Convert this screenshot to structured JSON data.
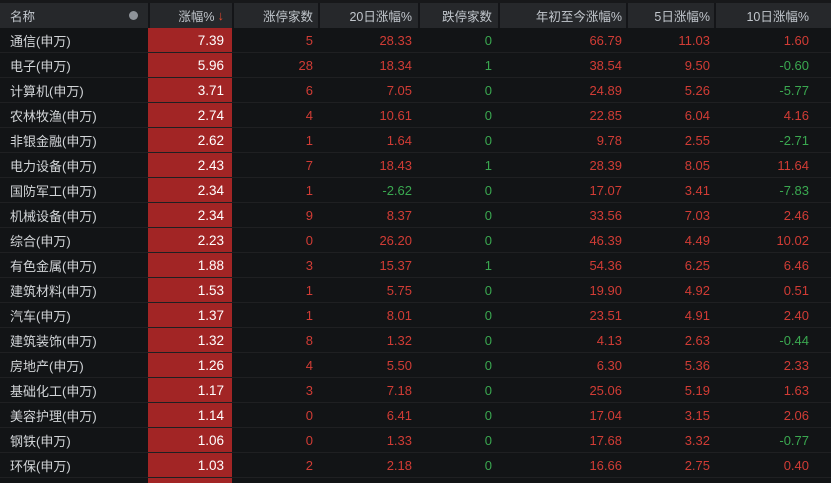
{
  "table": {
    "sort_indicator": "↓",
    "columns": [
      {
        "key": "name",
        "label": "名称",
        "rule": "plain"
      },
      {
        "key": "change",
        "label": "涨幅%",
        "rule": "bar",
        "sorted": "desc"
      },
      {
        "key": "limit_up",
        "label": "涨停家数",
        "rule": "always-red"
      },
      {
        "key": "chg20",
        "label": "20日涨幅%",
        "rule": "sign"
      },
      {
        "key": "limit_down",
        "label": "跌停家数",
        "rule": "always-green"
      },
      {
        "key": "ytd",
        "label": "年初至今涨幅%",
        "rule": "sign"
      },
      {
        "key": "chg5",
        "label": "5日涨幅%",
        "rule": "sign"
      },
      {
        "key": "chg10",
        "label": "10日涨幅%",
        "rule": "sign"
      }
    ],
    "rows": [
      {
        "name": "通信(申万)",
        "change": "7.39",
        "limit_up": "5",
        "chg20": "28.33",
        "limit_down": "0",
        "ytd": "66.79",
        "chg5": "11.03",
        "chg10": "1.60"
      },
      {
        "name": "电子(申万)",
        "change": "5.96",
        "limit_up": "28",
        "chg20": "18.34",
        "limit_down": "1",
        "ytd": "38.54",
        "chg5": "9.50",
        "chg10": "-0.60"
      },
      {
        "name": "计算机(申万)",
        "change": "3.71",
        "limit_up": "6",
        "chg20": "7.05",
        "limit_down": "0",
        "ytd": "24.89",
        "chg5": "5.26",
        "chg10": "-5.77"
      },
      {
        "name": "农林牧渔(申万)",
        "change": "2.74",
        "limit_up": "4",
        "chg20": "10.61",
        "limit_down": "0",
        "ytd": "22.85",
        "chg5": "6.04",
        "chg10": "4.16"
      },
      {
        "name": "非银金融(申万)",
        "change": "2.62",
        "limit_up": "1",
        "chg20": "1.64",
        "limit_down": "0",
        "ytd": "9.78",
        "chg5": "2.55",
        "chg10": "-2.71"
      },
      {
        "name": "电力设备(申万)",
        "change": "2.43",
        "limit_up": "7",
        "chg20": "18.43",
        "limit_down": "1",
        "ytd": "28.39",
        "chg5": "8.05",
        "chg10": "11.64"
      },
      {
        "name": "国防军工(申万)",
        "change": "2.34",
        "limit_up": "1",
        "chg20": "-2.62",
        "limit_down": "0",
        "ytd": "17.07",
        "chg5": "3.41",
        "chg10": "-7.83"
      },
      {
        "name": "机械设备(申万)",
        "change": "2.34",
        "limit_up": "9",
        "chg20": "8.37",
        "limit_down": "0",
        "ytd": "33.56",
        "chg5": "7.03",
        "chg10": "2.46"
      },
      {
        "name": "综合(申万)",
        "change": "2.23",
        "limit_up": "0",
        "chg20": "26.20",
        "limit_down": "0",
        "ytd": "46.39",
        "chg5": "4.49",
        "chg10": "10.02"
      },
      {
        "name": "有色金属(申万)",
        "change": "1.88",
        "limit_up": "3",
        "chg20": "15.37",
        "limit_down": "1",
        "ytd": "54.36",
        "chg5": "6.25",
        "chg10": "6.46"
      },
      {
        "name": "建筑材料(申万)",
        "change": "1.53",
        "limit_up": "1",
        "chg20": "5.75",
        "limit_down": "0",
        "ytd": "19.90",
        "chg5": "4.92",
        "chg10": "0.51"
      },
      {
        "name": "汽车(申万)",
        "change": "1.37",
        "limit_up": "1",
        "chg20": "8.01",
        "limit_down": "0",
        "ytd": "23.51",
        "chg5": "4.91",
        "chg10": "2.40"
      },
      {
        "name": "建筑装饰(申万)",
        "change": "1.32",
        "limit_up": "8",
        "chg20": "1.32",
        "limit_down": "0",
        "ytd": "4.13",
        "chg5": "2.63",
        "chg10": "-0.44"
      },
      {
        "name": "房地产(申万)",
        "change": "1.26",
        "limit_up": "4",
        "chg20": "5.50",
        "limit_down": "0",
        "ytd": "6.30",
        "chg5": "5.36",
        "chg10": "2.33"
      },
      {
        "name": "基础化工(申万)",
        "change": "1.17",
        "limit_up": "3",
        "chg20": "7.18",
        "limit_down": "0",
        "ytd": "25.06",
        "chg5": "5.19",
        "chg10": "1.63"
      },
      {
        "name": "美容护理(申万)",
        "change": "1.14",
        "limit_up": "0",
        "chg20": "6.41",
        "limit_down": "0",
        "ytd": "17.04",
        "chg5": "3.15",
        "chg10": "2.06"
      },
      {
        "name": "钢铁(申万)",
        "change": "1.06",
        "limit_up": "0",
        "chg20": "1.33",
        "limit_down": "0",
        "ytd": "17.68",
        "chg5": "3.32",
        "chg10": "-0.77"
      },
      {
        "name": "环保(申万)",
        "change": "1.03",
        "limit_up": "2",
        "chg20": "2.18",
        "limit_down": "0",
        "ytd": "16.66",
        "chg5": "2.75",
        "chg10": "0.40"
      }
    ]
  },
  "colors": {
    "background": "#121416",
    "header_background": "#26282b",
    "header_text": "#c2c7cd",
    "name_text": "#d2d5d8",
    "bar_red": "#a22525",
    "bar_value_text": "#ffffff",
    "up_red": "#d13c35",
    "down_green": "#3aa850",
    "sort_arrow": "#e1492f",
    "dot_icon": "#8e9399"
  }
}
